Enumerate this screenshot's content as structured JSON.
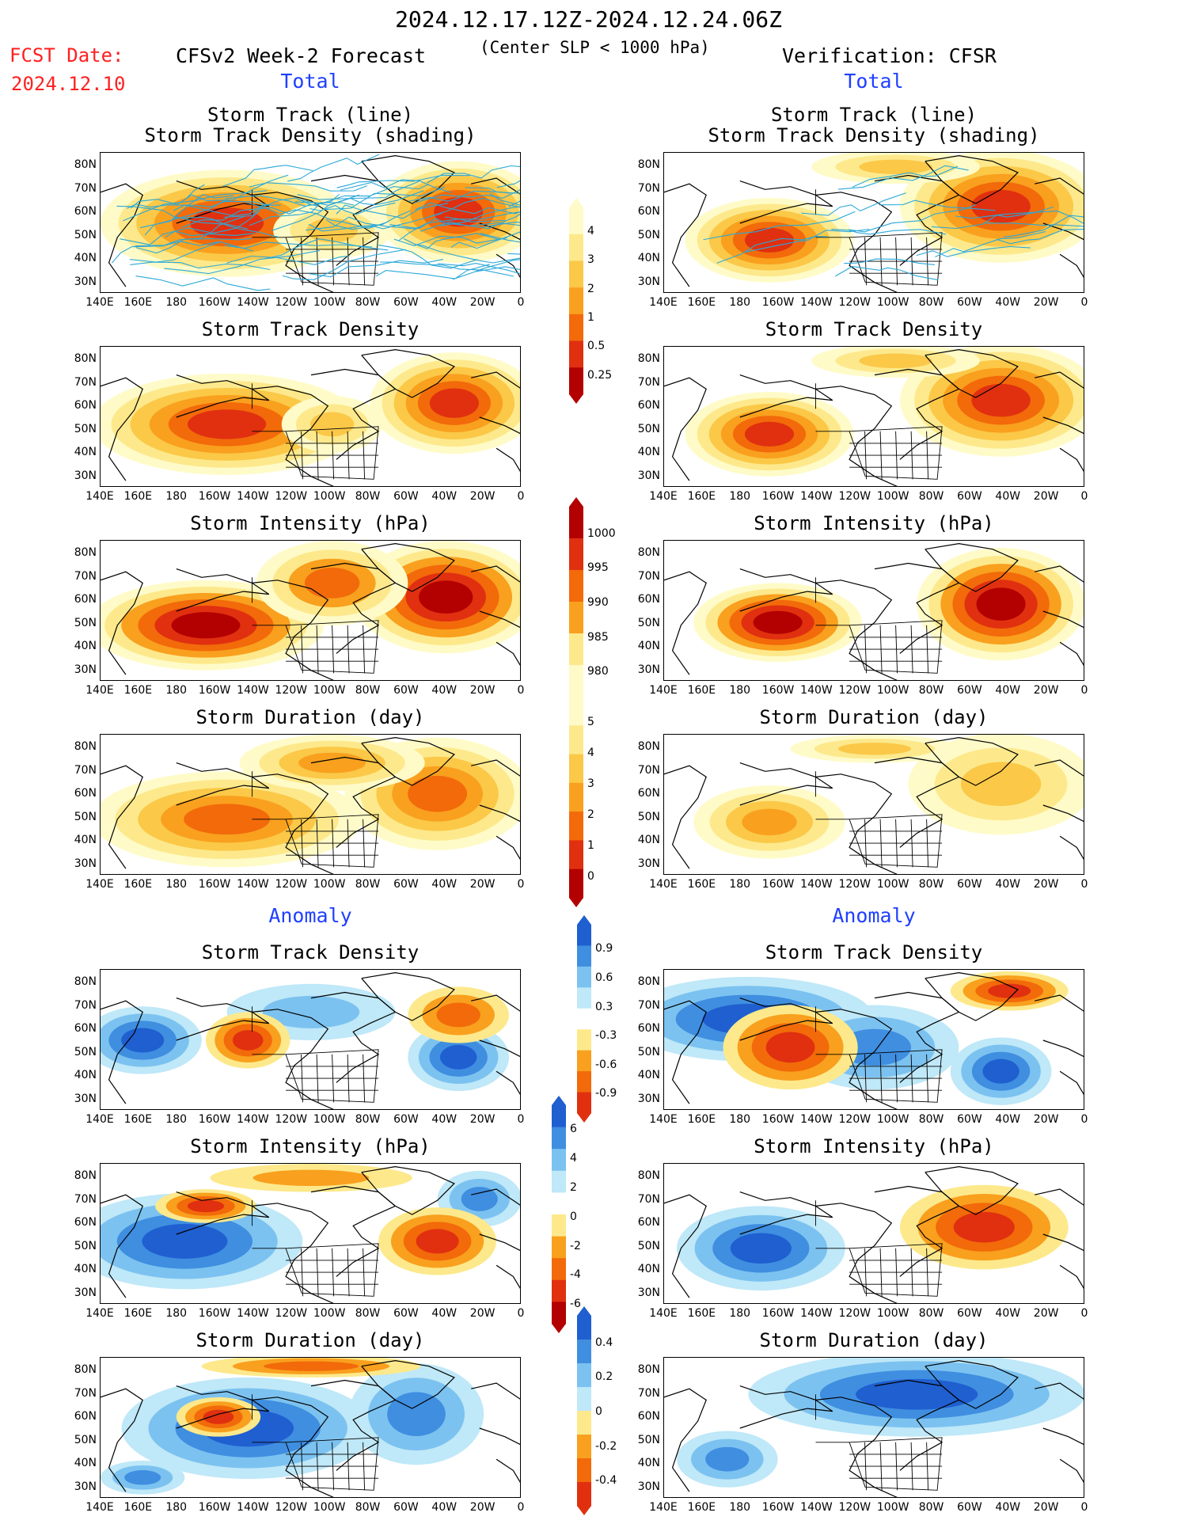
{
  "header": {
    "date_range": "2024.12.17.12Z-2024.12.24.06Z",
    "fcst_label": "FCST Date:",
    "fcst_date": "2024.12.10",
    "forecast_title": "CFSv2 Week-2 Forecast",
    "subtitle": "(Center SLP < 1000 hPa)",
    "verification_title": "Verification: CFSR"
  },
  "sections": {
    "total": "Total",
    "anomaly": "Anomaly"
  },
  "panel_titles": {
    "track_line": "Storm Track (line)",
    "track_shading": "Storm Track Density (shading)",
    "track_density": "Storm Track Density",
    "intensity": "Storm Intensity (hPa)",
    "duration": "Storm Duration (day)"
  },
  "axes": {
    "lat_ticks": [
      "80N",
      "70N",
      "60N",
      "50N",
      "40N",
      "30N"
    ],
    "lon_ticks": [
      "140E",
      "160E",
      "180",
      "160W",
      "140W",
      "120W",
      "100W",
      "80W",
      "60W",
      "40W",
      "20W",
      "0"
    ]
  },
  "colorbars": [
    {
      "name": "track-density-colorbar",
      "labels": [
        "4",
        "3",
        "2",
        "1",
        "0.5",
        "0.25"
      ],
      "colors": [
        "#b30000",
        "#e03010",
        "#f26a0a",
        "#f9a01e",
        "#fbc848",
        "#fde98c",
        "#fffbc8"
      ]
    },
    {
      "name": "intensity-colorbar",
      "labels": [
        "1000",
        "995",
        "990",
        "985",
        "980"
      ],
      "colors": [
        "#fffbc8",
        "#fde98c",
        "#f9a01e",
        "#f26a0a",
        "#e03010",
        "#b30000"
      ]
    },
    {
      "name": "duration-colorbar",
      "labels": [
        "5",
        "4",
        "3",
        "2",
        "1",
        "0"
      ],
      "colors": [
        "#b30000",
        "#e03010",
        "#f26a0a",
        "#f9a01e",
        "#fbc848",
        "#fde98c",
        "#fffbc8"
      ]
    },
    {
      "name": "anomaly-density-colorbar",
      "labels": [
        "0.9",
        "0.6",
        "0.3",
        "-0.3",
        "-0.6",
        "-0.9"
      ],
      "colors": [
        "#e03010",
        "#f26a0a",
        "#f9a01e",
        "#fde98c",
        "#ffffff",
        "#bfe8f8",
        "#7cc2f0",
        "#3f8ee0",
        "#1f5fd0"
      ]
    },
    {
      "name": "anomaly-intensity-colorbar",
      "labels": [
        "6",
        "4",
        "2",
        "0",
        "-2",
        "-4",
        "-6"
      ],
      "colors": [
        "#b30000",
        "#e03010",
        "#f26a0a",
        "#f9a01e",
        "#fde98c",
        "#ffffff",
        "#bfe8f8",
        "#7cc2f0",
        "#3f8ee0",
        "#1f5fd0"
      ]
    },
    {
      "name": "anomaly-duration-colorbar",
      "labels": [
        "0.4",
        "0.2",
        "0",
        "-0.2",
        "-0.4"
      ],
      "colors": [
        "#e03010",
        "#f26a0a",
        "#f9a01e",
        "#fde98c",
        "#bfe8f8",
        "#7cc2f0",
        "#3f8ee0",
        "#1f5fd0"
      ]
    }
  ],
  "maps": [
    {
      "name": "fcst-track-line-map",
      "field": "track_line"
    },
    {
      "name": "verif-track-line-map",
      "field": "track_line"
    },
    {
      "name": "fcst-track-density-map",
      "field": "track_density"
    },
    {
      "name": "verif-track-density-map",
      "field": "track_density"
    },
    {
      "name": "fcst-intensity-map",
      "field": "intensity"
    },
    {
      "name": "verif-intensity-map",
      "field": "intensity"
    },
    {
      "name": "fcst-duration-map",
      "field": "duration"
    },
    {
      "name": "verif-duration-map",
      "field": "duration"
    },
    {
      "name": "fcst-anomaly-density-map",
      "field": "anomaly_density"
    },
    {
      "name": "verif-anomaly-density-map",
      "field": "anomaly_density"
    },
    {
      "name": "fcst-anomaly-intensity-map",
      "field": "anomaly_intensity"
    },
    {
      "name": "verif-anomaly-intensity-map",
      "field": "anomaly_intensity"
    },
    {
      "name": "fcst-anomaly-duration-map",
      "field": "anomaly_duration"
    },
    {
      "name": "verif-anomaly-duration-map",
      "field": "anomaly_duration"
    }
  ]
}
